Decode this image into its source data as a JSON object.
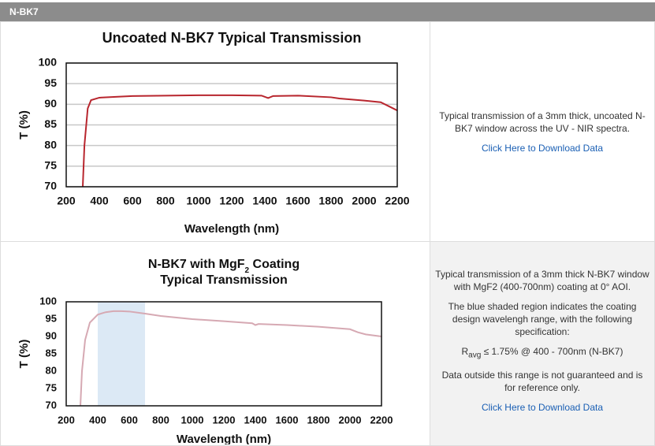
{
  "header": {
    "title": "N-BK7"
  },
  "chart_data": [
    {
      "type": "line",
      "title": "Uncoated N-BK7 Typical Transmission",
      "x_label": "Wavelength (nm)",
      "y_label": "T (%)",
      "x": [
        300,
        310,
        330,
        350,
        400,
        500,
        600,
        800,
        1000,
        1200,
        1380,
        1420,
        1450,
        1600,
        1800,
        1850,
        2000,
        2100,
        2150,
        2200
      ],
      "series": [
        {
          "color": "#b8262e",
          "values": [
            70,
            80,
            89,
            91,
            91.6,
            91.8,
            92,
            92.1,
            92.2,
            92.2,
            92.1,
            91.5,
            92,
            92.1,
            91.7,
            91.4,
            90.9,
            90.5,
            89.5,
            88.5
          ]
        }
      ],
      "xlim": [
        200,
        2200
      ],
      "xticks": [
        200,
        400,
        600,
        800,
        1000,
        1200,
        1400,
        1600,
        1800,
        2000,
        2200
      ],
      "ylim": [
        70,
        100
      ],
      "yticks": [
        70,
        75,
        80,
        85,
        90,
        95,
        100
      ],
      "grid": true
    },
    {
      "type": "line",
      "title_parts": {
        "before": "N-BK7 with MgF",
        "subscript": "2",
        "after": " Coating"
      },
      "subtitle": "Typical Transmission",
      "x_label": "Wavelength (nm)",
      "y_label": "T (%)",
      "x": [
        290,
        300,
        320,
        350,
        400,
        450,
        500,
        550,
        600,
        700,
        800,
        1000,
        1200,
        1380,
        1400,
        1420,
        1600,
        1800,
        2000,
        2050,
        2100,
        2200
      ],
      "series": [
        {
          "color": "#d6a9b3",
          "values": [
            70,
            80,
            89,
            94,
            96.3,
            97,
            97.3,
            97.3,
            97.2,
            96.6,
            95.9,
            95,
            94.4,
            93.8,
            93.3,
            93.6,
            93.3,
            92.8,
            92.1,
            91.2,
            90.6,
            90
          ]
        }
      ],
      "shade": [
        400,
        700
      ],
      "shade_color": "#dce9f5",
      "xlim": [
        200,
        2200
      ],
      "xticks": [
        200,
        400,
        600,
        800,
        1000,
        1200,
        1400,
        1600,
        1800,
        2000,
        2200
      ],
      "ylim": [
        70,
        100
      ],
      "yticks": [
        70,
        75,
        80,
        85,
        90,
        95,
        100
      ],
      "grid": false
    }
  ],
  "descriptions": [
    {
      "paragraphs": [
        "Typical transmission of a 3mm thick, uncoated N-BK7 window across the UV - NIR spectra."
      ],
      "link": "Click Here to Download Data"
    },
    {
      "paragraphs": [
        "Typical transmission of a 3mm thick N-BK7 window with MgF2 (400-700nm) coating at 0° AOI.",
        "The blue shaded region indicates the coating design wavelengh range, with the following specification:"
      ],
      "spec": {
        "symbol": "R",
        "subscript": "avg",
        "rest": " ≤ 1.75% @ 400 - 700nm (N-BK7)"
      },
      "note": "Data outside this range is not guaranteed and is for reference only.",
      "link": "Click Here to Download Data"
    }
  ]
}
